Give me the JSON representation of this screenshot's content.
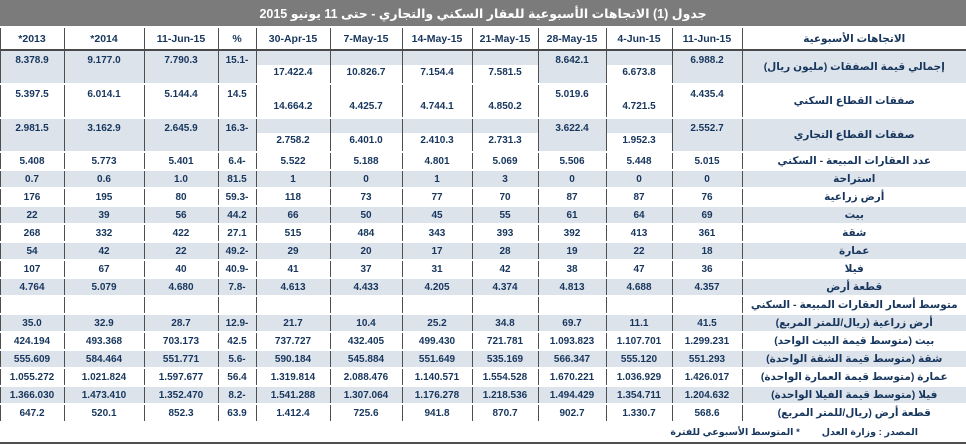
{
  "title": "جدول (1) الاتجاهات الأسبوعية للعقار السكني والتجاري - حتى 11 يونيو 2015",
  "footer": {
    "source": "المصدر : وزارة العدل",
    "note": "* المتوسط الأسبوعي للفترة"
  },
  "colors": {
    "title_bar_bg": "#7b7b7b",
    "title_text": "#ffffff",
    "row_shade": "#dde3eb",
    "text_navy": "#17365d",
    "grid_line": "#4a4a4a"
  },
  "table": {
    "label_header": "الاتجاهات الأسبوعية",
    "columns": [
      "11-Jun-15",
      "4-Jun-15",
      "28-May-15",
      "21-May-15",
      "14-May-15",
      "7-May-15",
      "30-Apr-15",
      "%",
      "11-Jun-15",
      "*2014",
      "*2013"
    ],
    "stagger_columns": [
      1,
      3,
      4,
      5,
      6
    ],
    "rows": [
      {
        "label": "إجمالي قيمة الصفقات (مليون ريال)",
        "type": "tall",
        "shade": "gray",
        "values": [
          "6.988.2",
          "6.673.8",
          "8.642.1",
          "7.581.5",
          "7.154.4",
          "10.826.7",
          "17.422.4",
          "15.1-",
          "7.790.3",
          "9.177.0",
          "8.378.9"
        ]
      },
      {
        "label": "صفقات القطاع السكني",
        "type": "tall",
        "shade": "white",
        "values": [
          "4.435.4",
          "4.721.5",
          "5.019.6",
          "4.850.2",
          "4.744.1",
          "4.425.7",
          "14.664.2",
          "14.5",
          "5.144.4",
          "6.014.1",
          "5.397.5"
        ]
      },
      {
        "label": "صفقات القطاع التجاري",
        "type": "tall",
        "shade": "gray",
        "values": [
          "2.552.7",
          "1.952.3",
          "3.622.4",
          "2.731.3",
          "2.410.3",
          "6.401.0",
          "2.758.2",
          "16.3-",
          "2.645.9",
          "3.162.9",
          "2.981.5"
        ]
      },
      {
        "label": "عدد العقارات المبيعة - السكني",
        "type": "normal",
        "shade": "white",
        "values": [
          "5.015",
          "5.448",
          "5.506",
          "5.069",
          "4.801",
          "5.188",
          "5.522",
          "6.4-",
          "5.401",
          "5.773",
          "5.408"
        ]
      },
      {
        "label": "استراحة",
        "type": "normal",
        "shade": "gray",
        "values": [
          "0",
          "0",
          "0",
          "3",
          "1",
          "0",
          "1",
          "81.5",
          "1.0",
          "0.6",
          "0.7"
        ]
      },
      {
        "label": "أرض زراعية",
        "type": "normal",
        "shade": "white",
        "values": [
          "76",
          "87",
          "87",
          "70",
          "77",
          "73",
          "118",
          "59.3-",
          "80",
          "195",
          "176"
        ]
      },
      {
        "label": "بيت",
        "type": "normal",
        "shade": "gray",
        "values": [
          "69",
          "64",
          "61",
          "55",
          "45",
          "50",
          "66",
          "44.2",
          "56",
          "39",
          "22"
        ]
      },
      {
        "label": "شقة",
        "type": "normal",
        "shade": "white",
        "values": [
          "361",
          "413",
          "392",
          "393",
          "343",
          "484",
          "515",
          "27.1",
          "422",
          "332",
          "268"
        ]
      },
      {
        "label": "عمارة",
        "type": "normal",
        "shade": "gray",
        "values": [
          "18",
          "22",
          "19",
          "28",
          "17",
          "20",
          "29",
          "49.2-",
          "22",
          "42",
          "54"
        ]
      },
      {
        "label": "فيلا",
        "type": "normal",
        "shade": "white",
        "values": [
          "36",
          "47",
          "38",
          "42",
          "31",
          "37",
          "41",
          "40.9-",
          "40",
          "67",
          "107"
        ]
      },
      {
        "label": "قطعة أرض",
        "type": "normal",
        "shade": "gray",
        "values": [
          "4.357",
          "4.688",
          "4.813",
          "4.374",
          "4.205",
          "4.433",
          "4.613",
          "7.8-",
          "4.680",
          "5.079",
          "4.764"
        ]
      },
      {
        "label": "متوسط أسعار العقارات المبيعة - السكني",
        "type": "section",
        "shade": "white",
        "values": [
          "",
          "",
          "",
          "",
          "",
          "",
          "",
          "",
          "",
          "",
          ""
        ]
      },
      {
        "label": "أرض زراعية  (ريال/للمتر المربع)",
        "type": "normal",
        "shade": "gray",
        "values": [
          "41.5",
          "11.1",
          "69.7",
          "34.8",
          "25.2",
          "10.4",
          "21.7",
          "12.9-",
          "28.7",
          "32.9",
          "35.0"
        ]
      },
      {
        "label": "بيت  (متوسط قيمة البيت الواحد)",
        "type": "normal",
        "shade": "white",
        "values": [
          "1.299.231",
          "1.107.701",
          "1.093.823",
          "721.781",
          "499.430",
          "432.405",
          "737.727",
          "42.5",
          "703.173",
          "493.368",
          "424.194"
        ]
      },
      {
        "label": "شقة  (متوسط قيمة الشقة الواحدة)",
        "type": "normal",
        "shade": "gray",
        "values": [
          "551.293",
          "555.120",
          "566.347",
          "535.169",
          "551.649",
          "545.884",
          "590.184",
          "5.6-",
          "551.771",
          "584.464",
          "555.609"
        ]
      },
      {
        "label": "عمارة  (متوسط قيمة العمارة الواحدة)",
        "type": "normal",
        "shade": "white",
        "values": [
          "1.426.017",
          "1.036.929",
          "1.670.221",
          "1.554.528",
          "1.140.571",
          "2.088.476",
          "1.319.814",
          "56.4",
          "1.597.677",
          "1.021.824",
          "1.055.272"
        ]
      },
      {
        "label": "فيلا  (متوسط قيمة الفيلا الواحدة)",
        "type": "normal",
        "shade": "gray",
        "values": [
          "1.204.632",
          "1.354.711",
          "1.494.429",
          "1.218.536",
          "1.176.278",
          "1.307.064",
          "1.541.288",
          "8.2-",
          "1.352.470",
          "1.473.410",
          "1.366.030"
        ]
      },
      {
        "label": "قطعة أرض  (ريال/للمتر المربع)",
        "type": "normal",
        "shade": "white",
        "values": [
          "568.6",
          "1.330.7",
          "902.7",
          "870.7",
          "941.8",
          "725.6",
          "1.412.4",
          "63.9",
          "852.3",
          "520.1",
          "647.2"
        ]
      }
    ]
  }
}
